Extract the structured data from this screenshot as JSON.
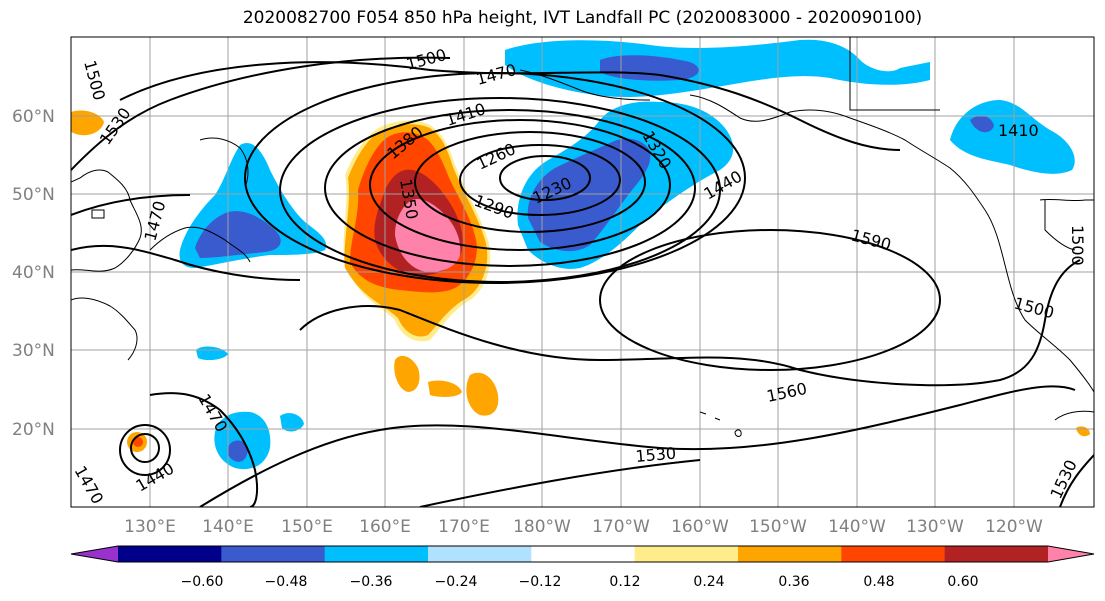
{
  "title": "2020082700 F054 850 hPa height, IVT Landfall PC (2020083000 - 2020090100)",
  "lat_labels": [
    "60°N",
    "50°N",
    "40°N",
    "30°N",
    "20°N"
  ],
  "lon_labels": [
    "130°E",
    "140°E",
    "150°E",
    "160°E",
    "170°E",
    "180°W",
    "170°W",
    "160°W",
    "150°W",
    "140°W",
    "130°W",
    "120°W"
  ],
  "contour_labels": [
    "1500",
    "1470",
    "1500",
    "1530",
    "1410",
    "1380",
    "1350",
    "1260",
    "1230",
    "1290",
    "1320",
    "1440",
    "1410",
    "1590",
    "1500",
    "1500",
    "1560",
    "1530",
    "1470",
    "1440",
    "1470",
    "1530",
    "1470"
  ],
  "colorbar": {
    "ticks": [
      "−0.60",
      "−0.48",
      "−0.36",
      "−0.24",
      "−0.12",
      "0.12",
      "0.24",
      "0.36",
      "0.48",
      "0.60"
    ],
    "colors": [
      "#9932cc",
      "#00008b",
      "#3a5bcd",
      "#00bfff",
      "#b0e2ff",
      "#ffffff",
      "#ffec8b",
      "#ffa500",
      "#ff4500",
      "#b22222",
      "#ff82ab"
    ]
  }
}
